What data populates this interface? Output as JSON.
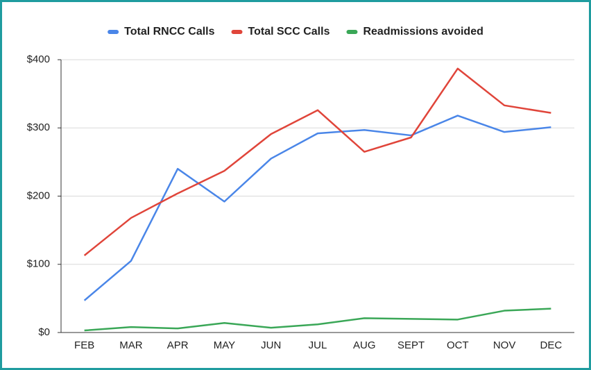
{
  "chart_data": {
    "type": "line",
    "categories": [
      "FEB",
      "MAR",
      "APR",
      "MAY",
      "JUN",
      "JUL",
      "AUG",
      "SEPT",
      "OCT",
      "NOV",
      "DEC"
    ],
    "series": [
      {
        "name": "Total RNCC Calls",
        "color": "#4a86e8",
        "values": [
          47,
          105,
          240,
          192,
          255,
          292,
          297,
          289,
          318,
          294,
          301
        ]
      },
      {
        "name": "Total SCC Calls",
        "color": "#e0453a",
        "values": [
          113,
          168,
          204,
          237,
          291,
          326,
          265,
          286,
          387,
          333,
          322
        ]
      },
      {
        "name": "Readmissions avoided",
        "color": "#3aa757",
        "values": [
          3,
          8,
          6,
          14,
          7,
          12,
          21,
          20,
          19,
          32,
          35
        ]
      }
    ],
    "ylim": [
      0,
      400
    ],
    "yticks": [
      {
        "value": 0,
        "label": "$0"
      },
      {
        "value": 100,
        "label": "$100"
      },
      {
        "value": 200,
        "label": "$200"
      },
      {
        "value": 300,
        "label": "$300"
      },
      {
        "value": 400,
        "label": "$400"
      }
    ],
    "grid": true,
    "legend": "top"
  }
}
